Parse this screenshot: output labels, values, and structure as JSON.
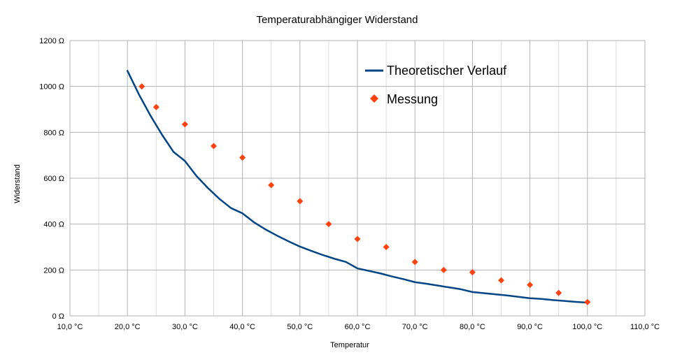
{
  "chart_data": {
    "type": "scatter",
    "title": "Temperaturabhängiger Widerstand",
    "xlabel": "Temperatur",
    "ylabel": "Widerstand",
    "xlim": [
      10,
      110
    ],
    "ylim": [
      0,
      1200
    ],
    "x_ticks": [
      10,
      20,
      30,
      40,
      50,
      60,
      70,
      80,
      90,
      100,
      110
    ],
    "x_tick_labels": [
      "10,0 °C",
      "20,0 °C",
      "30,0 °C",
      "40,0 °C",
      "50,0 °C",
      "60,0 °C",
      "70,0 °C",
      "80,0 °C",
      "90,0 °C",
      "100,0 °C",
      "110,0 °C"
    ],
    "y_ticks": [
      0,
      200,
      400,
      600,
      800,
      1000,
      1200
    ],
    "y_tick_labels": [
      "0 Ω",
      "200 Ω",
      "400 Ω",
      "600 Ω",
      "800 Ω",
      "1000 Ω",
      "1200 Ω"
    ],
    "grid": true,
    "minor_x_grid": true,
    "legend_position": "top-right",
    "series": [
      {
        "name": "Theoretischer Verlauf",
        "kind": "line",
        "color": "#004586",
        "points": [
          [
            20,
            1068
          ],
          [
            22,
            965
          ],
          [
            24,
            873
          ],
          [
            26,
            790
          ],
          [
            28,
            715
          ],
          [
            30,
            675
          ],
          [
            32,
            610
          ],
          [
            34,
            557
          ],
          [
            36,
            510
          ],
          [
            38,
            470
          ],
          [
            40,
            447
          ],
          [
            42,
            408
          ],
          [
            44,
            377
          ],
          [
            46,
            350
          ],
          [
            48,
            325
          ],
          [
            50,
            302
          ],
          [
            52,
            283
          ],
          [
            54,
            265
          ],
          [
            56,
            249
          ],
          [
            58,
            235
          ],
          [
            60,
            207
          ],
          [
            62,
            196
          ],
          [
            64,
            185
          ],
          [
            66,
            172
          ],
          [
            68,
            160
          ],
          [
            70,
            147
          ],
          [
            72,
            140
          ],
          [
            74,
            132
          ],
          [
            76,
            124
          ],
          [
            78,
            116
          ],
          [
            80,
            104
          ],
          [
            82,
            99
          ],
          [
            84,
            94
          ],
          [
            86,
            89
          ],
          [
            88,
            83
          ],
          [
            90,
            77
          ],
          [
            92,
            74
          ],
          [
            94,
            69
          ],
          [
            96,
            65
          ],
          [
            98,
            61
          ],
          [
            100,
            58
          ]
        ]
      },
      {
        "name": "Messung",
        "kind": "scatter",
        "color": "#ff420e",
        "points": [
          [
            22.5,
            1000
          ],
          [
            25,
            910
          ],
          [
            30,
            835
          ],
          [
            35,
            740
          ],
          [
            40,
            690
          ],
          [
            45,
            570
          ],
          [
            50,
            500
          ],
          [
            55,
            400
          ],
          [
            60,
            335
          ],
          [
            65,
            300
          ],
          [
            70,
            235
          ],
          [
            75,
            200
          ],
          [
            80,
            190
          ],
          [
            85,
            155
          ],
          [
            90,
            135
          ],
          [
            95,
            100
          ],
          [
            100,
            60
          ]
        ]
      }
    ]
  }
}
